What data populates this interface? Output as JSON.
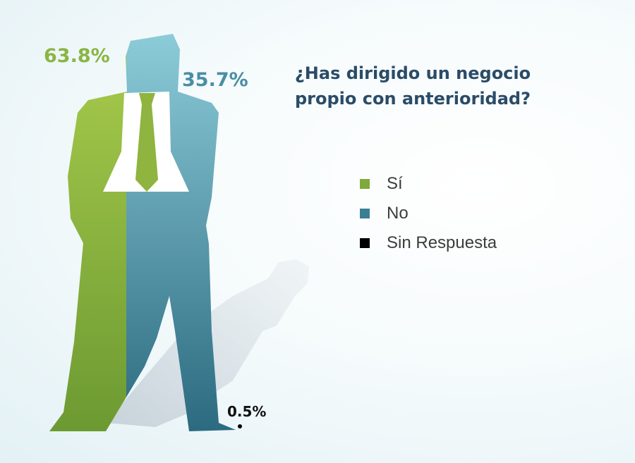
{
  "chart_data": {
    "type": "pie",
    "title_lines": [
      "¿Has dirigido un negocio",
      "propio con anterioridad?"
    ],
    "slices": [
      {
        "label": "Sí",
        "value": 63.8,
        "display": "63.8%",
        "color": "#80a83c"
      },
      {
        "label": "No",
        "value": 35.7,
        "display": "35.7%",
        "color": "#3b7f93"
      },
      {
        "label": "Sin Respuesta",
        "value": 0.5,
        "display": "0.5%",
        "color": "#000000"
      }
    ],
    "legend_placement": "right"
  }
}
